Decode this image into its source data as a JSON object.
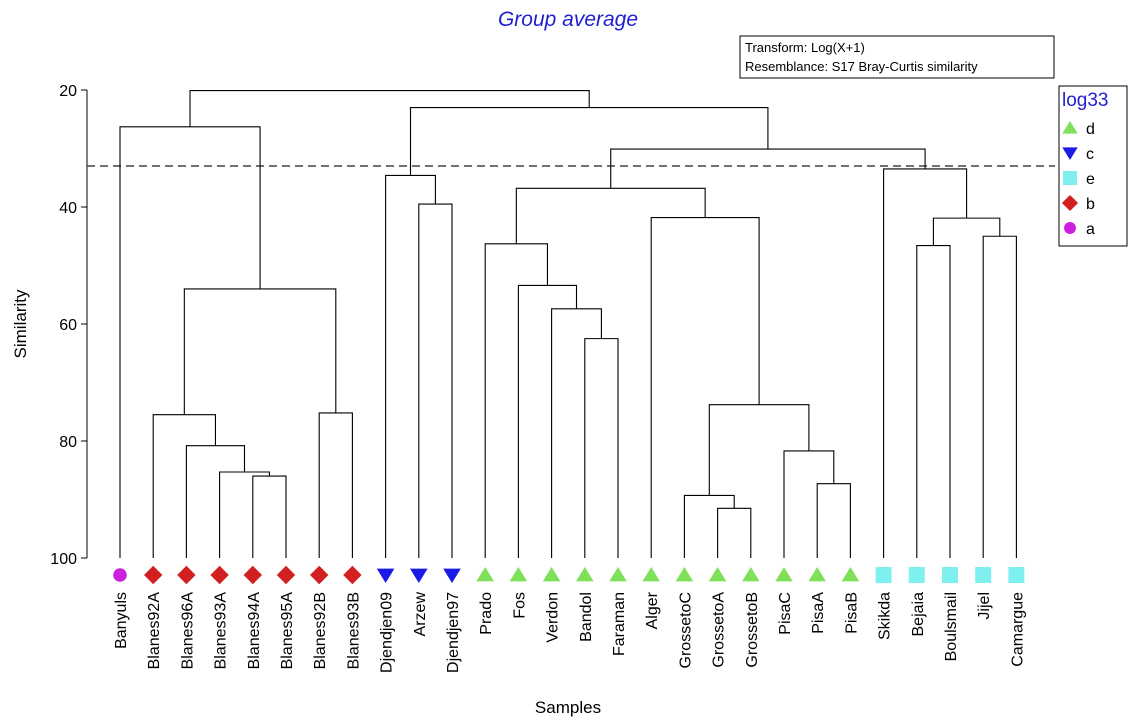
{
  "chart_data": {
    "type": "dendrogram",
    "title": "Group average",
    "xlabel": "Samples",
    "ylabel": "Similarity",
    "ylim": [
      20,
      100
    ],
    "yticks": [
      20,
      40,
      60,
      80,
      100
    ],
    "cutoff": 33,
    "info": {
      "transform": "Transform: Log(X+1)",
      "resemblance": "Resemblance: S17 Bray-Curtis similarity"
    },
    "legend": {
      "title": "log33",
      "items": [
        {
          "group": "d",
          "symbol": "triangle-up",
          "color": "#7fe05a"
        },
        {
          "group": "c",
          "symbol": "triangle-down",
          "color": "#1a1ae6"
        },
        {
          "group": "e",
          "symbol": "square",
          "color": "#7ff0f0"
        },
        {
          "group": "b",
          "symbol": "diamond",
          "color": "#d21f1f"
        },
        {
          "group": "a",
          "symbol": "circle",
          "color": "#cc1fe0"
        }
      ]
    },
    "leaves": [
      {
        "name": "Banyuls",
        "group": "a"
      },
      {
        "name": "Blanes92A",
        "group": "b"
      },
      {
        "name": "Blanes96A",
        "group": "b"
      },
      {
        "name": "Blanes93A",
        "group": "b"
      },
      {
        "name": "Blanes94A",
        "group": "b"
      },
      {
        "name": "Blanes95A",
        "group": "b"
      },
      {
        "name": "Blanes92B",
        "group": "b"
      },
      {
        "name": "Blanes93B",
        "group": "b"
      },
      {
        "name": "Djendjen09",
        "group": "c"
      },
      {
        "name": "Arzew",
        "group": "c"
      },
      {
        "name": "Djendjen97",
        "group": "c"
      },
      {
        "name": "Prado",
        "group": "d"
      },
      {
        "name": "Fos",
        "group": "d"
      },
      {
        "name": "Verdon",
        "group": "d"
      },
      {
        "name": "Bandol",
        "group": "d"
      },
      {
        "name": "Faraman",
        "group": "d"
      },
      {
        "name": "Alger",
        "group": "d"
      },
      {
        "name": "GrossetoC",
        "group": "d"
      },
      {
        "name": "GrossetoA",
        "group": "d"
      },
      {
        "name": "GrossetoB",
        "group": "d"
      },
      {
        "name": "PisaC",
        "group": "d"
      },
      {
        "name": "PisaA",
        "group": "d"
      },
      {
        "name": "PisaB",
        "group": "d"
      },
      {
        "name": "Skikda",
        "group": "e"
      },
      {
        "name": "Bejaia",
        "group": "e"
      },
      {
        "name": "Boulsmail",
        "group": "e"
      },
      {
        "name": "Jijel",
        "group": "e"
      },
      {
        "name": "Camargue",
        "group": "e"
      }
    ],
    "merges": [
      {
        "id": "n1",
        "left": 4,
        "right": 5,
        "similarity": 86
      },
      {
        "id": "n2",
        "left": 3,
        "right": "n1",
        "similarity": 85.3
      },
      {
        "id": "n3",
        "left": 2,
        "right": "n2",
        "similarity": 80.8
      },
      {
        "id": "n4",
        "left": 1,
        "right": "n3",
        "similarity": 75.5
      },
      {
        "id": "n5",
        "left": 6,
        "right": 7,
        "similarity": 75.2
      },
      {
        "id": "n6",
        "left": "n4",
        "right": "n5",
        "similarity": 54
      },
      {
        "id": "n7",
        "left": 0,
        "right": "n6",
        "similarity": 26.3
      },
      {
        "id": "n8",
        "left": 9,
        "right": 10,
        "similarity": 39.5
      },
      {
        "id": "n9",
        "left": 8,
        "right": "n8",
        "similarity": 34.6
      },
      {
        "id": "n10",
        "left": 14,
        "right": 15,
        "similarity": 62.5
      },
      {
        "id": "n11",
        "left": 13,
        "right": "n10",
        "similarity": 57.4
      },
      {
        "id": "n12",
        "left": 12,
        "right": "n11",
        "similarity": 53.4
      },
      {
        "id": "n13",
        "left": 11,
        "right": "n12",
        "similarity": 46.3
      },
      {
        "id": "n14",
        "left": 18,
        "right": 19,
        "similarity": 91.5
      },
      {
        "id": "n15",
        "left": 17,
        "right": "n14",
        "similarity": 89.3
      },
      {
        "id": "n16",
        "left": 21,
        "right": 22,
        "similarity": 87.3
      },
      {
        "id": "n17",
        "left": 20,
        "right": "n16",
        "similarity": 81.7
      },
      {
        "id": "n18",
        "left": "n15",
        "right": "n17",
        "similarity": 73.8
      },
      {
        "id": "n19",
        "left": 16,
        "right": "n18",
        "similarity": 41.8
      },
      {
        "id": "n20",
        "left": "n13",
        "right": "n19",
        "similarity": 36.8
      },
      {
        "id": "n21",
        "left": 24,
        "right": 25,
        "similarity": 46.6
      },
      {
        "id": "n22",
        "left": 26,
        "right": 27,
        "similarity": 45
      },
      {
        "id": "n23",
        "left": "n21",
        "right": "n22",
        "similarity": 41.9
      },
      {
        "id": "n24",
        "left": 23,
        "right": "n23",
        "similarity": 33.5
      },
      {
        "id": "n25",
        "left": "n20",
        "right": "n24",
        "similarity": 30.1
      },
      {
        "id": "n26",
        "left": "n9",
        "right": "n25",
        "similarity": 23
      },
      {
        "id": "n27",
        "left": "n7",
        "right": "n26",
        "similarity": 20.1
      }
    ]
  }
}
